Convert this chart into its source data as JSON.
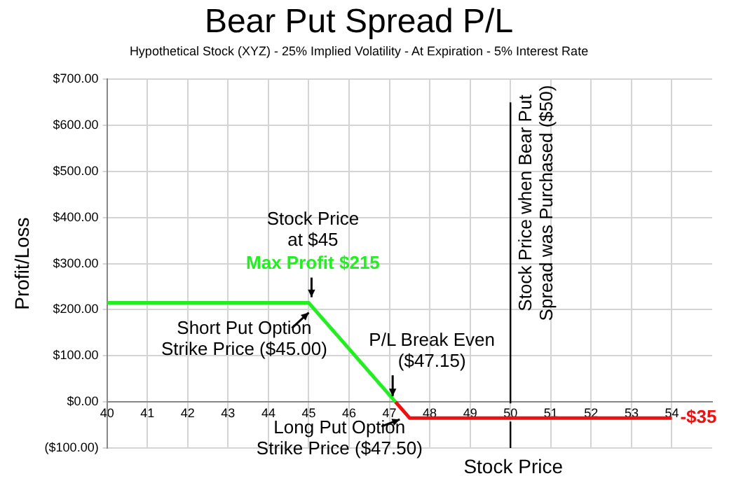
{
  "chart_data": {
    "type": "line",
    "title": "Bear Put Spread P/L",
    "subtitle": "Hypothetical Stock (XYZ) - 25% Implied Volatility - At Expiration - 5% Interest Rate",
    "xlabel": "Stock Price",
    "ylabel": "Profit/Loss",
    "series": [
      {
        "x": [
          40,
          45,
          47.15
        ],
        "values": [
          215,
          215,
          0
        ],
        "color": "#22ee22"
      },
      {
        "x": [
          47.15,
          47.5,
          54
        ],
        "values": [
          0,
          -35,
          -35
        ],
        "color": "#ee1111"
      }
    ],
    "xlim": [
      40,
      55
    ],
    "xticks": [
      40,
      41,
      42,
      43,
      44,
      45,
      46,
      47,
      48,
      49,
      50,
      51,
      52,
      53,
      54
    ],
    "ylim": [
      -100,
      700
    ],
    "yticks": [
      {
        "value": -100,
        "label": "($100.00)"
      },
      {
        "value": 0,
        "label": "$0.00"
      },
      {
        "value": 100,
        "label": "$100.00"
      },
      {
        "value": 200,
        "label": "$200.00"
      },
      {
        "value": 300,
        "label": "$300.00"
      },
      {
        "value": 400,
        "label": "$400.00"
      },
      {
        "value": 500,
        "label": "$500.00"
      },
      {
        "value": 600,
        "label": "$600.00"
      },
      {
        "value": 700,
        "label": "$700.00"
      }
    ],
    "ref_lines": [
      {
        "axis": "x",
        "value": 50,
        "label": "Stock Price when Bear Put Spread was Purchased ($50)",
        "color": "#000000"
      }
    ],
    "annotations": [
      {
        "text": "Stock Price at $45",
        "x": 45,
        "y": 215
      },
      {
        "text": "Max Profit $215",
        "x": 45,
        "y": 215
      },
      {
        "text": "Short Put Option Strike Price ($45.00)",
        "x": 45,
        "y": 215
      },
      {
        "text": "P/L Break Even ($47.15)",
        "x": 47.15,
        "y": 0
      },
      {
        "text": "Long Put Option Strike Price ($47.50)",
        "x": 47.5,
        "y": -35
      },
      {
        "text": "-$35",
        "x": 54,
        "y": -35
      }
    ],
    "grid": true,
    "legend": false,
    "marker": "none",
    "line_style": "solid"
  }
}
